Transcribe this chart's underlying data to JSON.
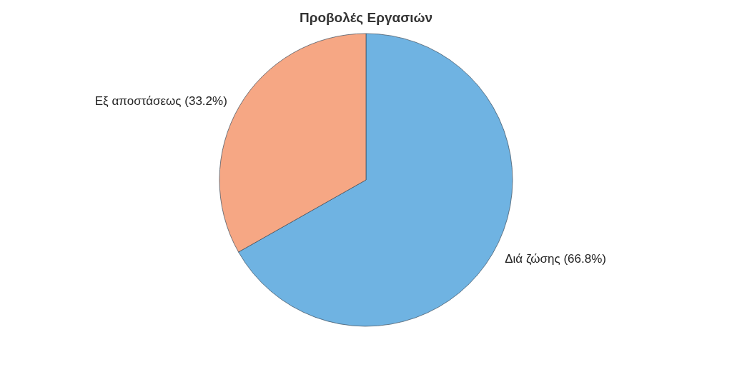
{
  "chart_data": {
    "type": "pie",
    "title": "Προβολές Εργασιών",
    "categories": [
      "Διά ζώσης",
      "Εξ αποστάσεως"
    ],
    "values": [
      66.8,
      33.2
    ],
    "value_labels": [
      "(66.8%)",
      "(33.2%)"
    ],
    "colors": [
      "#6fb3e2",
      "#f6a784"
    ],
    "legend": false
  }
}
